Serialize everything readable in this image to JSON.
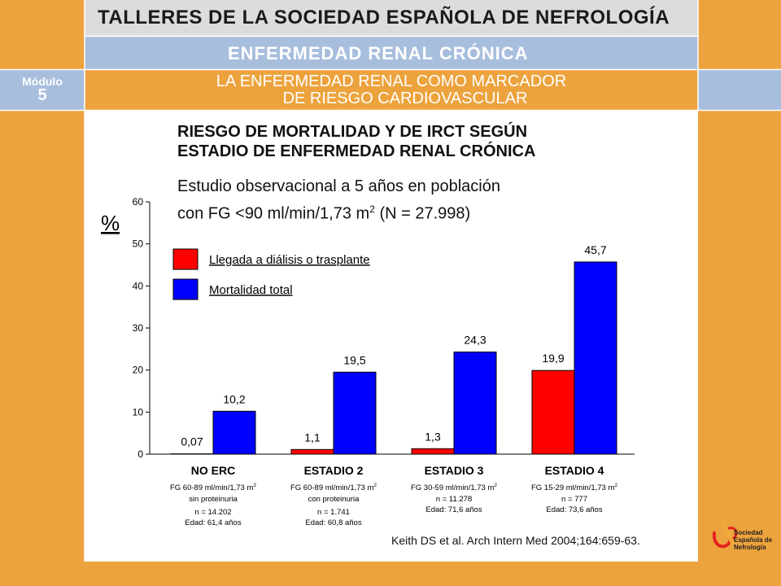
{
  "header": {
    "title": "TALLERES DE LA SOCIEDAD ESPAÑOLA DE NEFROLOGÍA",
    "subtitle": "ENFERMEDAD RENAL CRÓNICA",
    "module_label": "Módulo",
    "module_number": "5",
    "topic_line1": "LA ENFERMEDAD RENAL COMO MARCADOR",
    "topic_line2": "DE RIESGO CARDIOVASCULAR"
  },
  "slide": {
    "heading_line1": "RIESGO DE MORTALIDAD Y DE IRCT SEGÚN",
    "heading_line2": "ESTADIO DE ENFERMEDAD RENAL CRÓNICA",
    "study_line1": "Estudio observacional a 5 años en población",
    "study_line2_pre": "con FG <90 ml/min/1,73 m",
    "study_line2_sup": "2",
    "study_line2_post": " (N = 27.998)",
    "citation": "Keith DS et al. Arch Intern Med 2004;164:659-63."
  },
  "logo": {
    "line1": "Sociedad",
    "line2": "Española de",
    "line3": "Nefrología"
  },
  "colors": {
    "background": "#EDA33D",
    "title_band": "#DCDCDC",
    "blue_band": "#A8BEDD",
    "series_red": "#FF0000",
    "series_blue": "#0000FF"
  },
  "chart_data": {
    "type": "bar",
    "ylabel": "%",
    "ylim": [
      0,
      60
    ],
    "yticks": [
      "0",
      "10",
      "20",
      "30",
      "40",
      "50",
      "60"
    ],
    "categories": [
      "NO ERC",
      "ESTADIO 2",
      "ESTADIO 3",
      "ESTADIO 4"
    ],
    "series": [
      {
        "name": "Llegada a diálisis o trasplante",
        "color": "#FF0000",
        "values": [
          0.07,
          1.1,
          1.3,
          19.9
        ],
        "labels": [
          "0,07",
          "1,1",
          "1,3",
          "19,9"
        ]
      },
      {
        "name": "Mortalidad total",
        "color": "#0000FF",
        "values": [
          10.2,
          19.5,
          24.3,
          45.7
        ],
        "labels": [
          "10,2",
          "19,5",
          "24,3",
          "45,7"
        ]
      }
    ],
    "category_details": [
      {
        "fg": "FG 60-89 ml/min/1,73 m",
        "sup": "2",
        "extra": "sin proteinuria",
        "n": "n = 14.202",
        "age": "Edad: 61,4 años"
      },
      {
        "fg": "FG 60-89 ml/min/1,73 m",
        "sup": "2",
        "extra": "con proteinuria",
        "n": "n = 1.741",
        "age": "Edad: 60,8 años"
      },
      {
        "fg": "FG 30-59 ml/min/1,73 m",
        "sup": "2",
        "extra": "",
        "n": "n = 11.278",
        "age": "Edad: 71,6 años"
      },
      {
        "fg": "FG 15-29 ml/min/1,73 m",
        "sup": "2",
        "extra": "",
        "n": "n = 777",
        "age": "Edad: 73,6 años"
      }
    ],
    "legend_position": "top-left",
    "grid": false
  }
}
